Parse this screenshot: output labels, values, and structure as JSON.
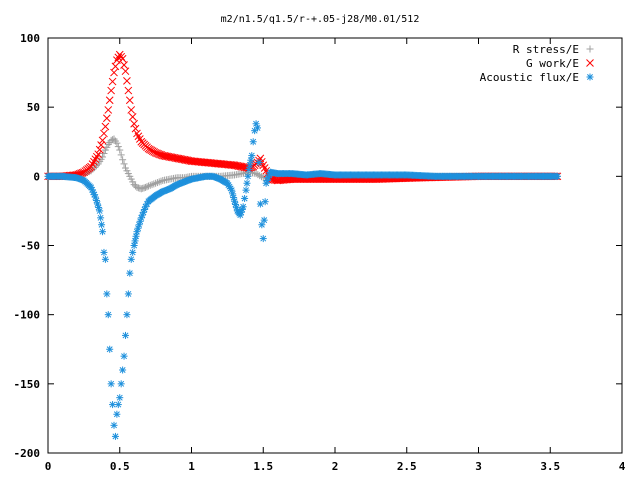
{
  "chart_data": {
    "type": "scatter",
    "title": "m2/n1.5/q1.5/r-+.05-j28/M0.01/512",
    "xlabel": "",
    "ylabel": "",
    "xlim": [
      0,
      4
    ],
    "ylim": [
      -200,
      100
    ],
    "grid": false,
    "legend_position": "top-right",
    "x_ticks": [
      0,
      0.5,
      1,
      1.5,
      2,
      2.5,
      3,
      3.5,
      4
    ],
    "x_tick_labels": [
      "0",
      "0.5",
      "1",
      "1.5",
      "2",
      "2.5",
      "3",
      "3.5",
      "4"
    ],
    "y_ticks": [
      100,
      50,
      0,
      -50,
      -100,
      -150,
      -200
    ],
    "y_tick_labels": [
      "100",
      "50",
      "0",
      "-50",
      "-100",
      "-150",
      "-200"
    ],
    "series": [
      {
        "name": "R stress/E",
        "marker": "+",
        "color": "#a0a0a0",
        "points": [
          [
            0.0,
            0
          ],
          [
            0.1,
            0
          ],
          [
            0.2,
            0.5
          ],
          [
            0.25,
            1.5
          ],
          [
            0.3,
            4
          ],
          [
            0.35,
            9
          ],
          [
            0.38,
            14
          ],
          [
            0.4,
            19
          ],
          [
            0.42,
            23
          ],
          [
            0.44,
            26
          ],
          [
            0.46,
            27
          ],
          [
            0.48,
            24
          ],
          [
            0.5,
            19
          ],
          [
            0.52,
            12
          ],
          [
            0.54,
            6
          ],
          [
            0.56,
            2
          ],
          [
            0.58,
            -2
          ],
          [
            0.6,
            -6
          ],
          [
            0.62,
            -8
          ],
          [
            0.65,
            -9
          ],
          [
            0.68,
            -8
          ],
          [
            0.7,
            -7
          ],
          [
            0.75,
            -5
          ],
          [
            0.8,
            -3
          ],
          [
            0.85,
            -2
          ],
          [
            0.9,
            -1
          ],
          [
            0.95,
            -1
          ],
          [
            1.0,
            0
          ],
          [
            1.1,
            0
          ],
          [
            1.2,
            0
          ],
          [
            1.3,
            1
          ],
          [
            1.35,
            2
          ],
          [
            1.4,
            3
          ],
          [
            1.45,
            2
          ],
          [
            1.5,
            -1
          ],
          [
            1.55,
            0
          ],
          [
            1.7,
            0
          ],
          [
            2.0,
            0
          ],
          [
            2.5,
            0
          ],
          [
            3.0,
            0
          ],
          [
            3.55,
            0
          ]
        ]
      },
      {
        "name": "G work/E",
        "marker": "x",
        "color": "#ff0000",
        "points": [
          [
            0.0,
            0
          ],
          [
            0.1,
            0
          ],
          [
            0.2,
            1
          ],
          [
            0.25,
            3
          ],
          [
            0.3,
            7
          ],
          [
            0.35,
            16
          ],
          [
            0.38,
            26
          ],
          [
            0.4,
            36
          ],
          [
            0.42,
            48
          ],
          [
            0.44,
            62
          ],
          [
            0.46,
            75
          ],
          [
            0.48,
            84
          ],
          [
            0.5,
            88
          ],
          [
            0.52,
            85
          ],
          [
            0.54,
            76
          ],
          [
            0.56,
            62
          ],
          [
            0.58,
            48
          ],
          [
            0.6,
            38
          ],
          [
            0.62,
            31
          ],
          [
            0.65,
            25
          ],
          [
            0.7,
            20
          ],
          [
            0.75,
            17
          ],
          [
            0.8,
            15
          ],
          [
            0.9,
            13
          ],
          [
            1.0,
            11
          ],
          [
            1.1,
            10
          ],
          [
            1.2,
            9
          ],
          [
            1.3,
            8
          ],
          [
            1.35,
            7
          ],
          [
            1.4,
            6
          ],
          [
            1.43,
            7
          ],
          [
            1.46,
            10
          ],
          [
            1.48,
            13
          ],
          [
            1.5,
            8
          ],
          [
            1.55,
            -2
          ],
          [
            1.6,
            -3
          ],
          [
            1.7,
            -2
          ],
          [
            2.0,
            -2
          ],
          [
            2.3,
            -2
          ],
          [
            2.6,
            -1
          ],
          [
            3.0,
            0
          ],
          [
            3.3,
            0
          ],
          [
            3.55,
            0
          ]
        ]
      },
      {
        "name": "Acoustic flux/E",
        "marker": "*",
        "color": "#1e90dc",
        "points": [
          [
            0.0,
            0
          ],
          [
            0.1,
            0
          ],
          [
            0.2,
            -1
          ],
          [
            0.25,
            -3
          ],
          [
            0.3,
            -8
          ],
          [
            0.33,
            -15
          ],
          [
            0.36,
            -25
          ],
          [
            0.38,
            -40
          ],
          [
            0.39,
            -55
          ],
          [
            0.4,
            -60
          ],
          [
            0.41,
            -85
          ],
          [
            0.42,
            -100
          ],
          [
            0.43,
            -125
          ],
          [
            0.44,
            -150
          ],
          [
            0.45,
            -165
          ],
          [
            0.46,
            -180
          ],
          [
            0.47,
            -188
          ],
          [
            0.48,
            -172
          ],
          [
            0.49,
            -165
          ],
          [
            0.5,
            -160
          ],
          [
            0.51,
            -150
          ],
          [
            0.52,
            -140
          ],
          [
            0.53,
            -130
          ],
          [
            0.54,
            -115
          ],
          [
            0.55,
            -100
          ],
          [
            0.56,
            -85
          ],
          [
            0.57,
            -70
          ],
          [
            0.58,
            -60
          ],
          [
            0.59,
            -55
          ],
          [
            0.6,
            -50
          ],
          [
            0.62,
            -40
          ],
          [
            0.65,
            -30
          ],
          [
            0.68,
            -22
          ],
          [
            0.7,
            -18
          ],
          [
            0.75,
            -14
          ],
          [
            0.8,
            -11
          ],
          [
            0.85,
            -9
          ],
          [
            0.9,
            -6
          ],
          [
            0.95,
            -4
          ],
          [
            1.0,
            -2
          ],
          [
            1.05,
            -1
          ],
          [
            1.1,
            0
          ],
          [
            1.15,
            0
          ],
          [
            1.2,
            -2
          ],
          [
            1.25,
            -5
          ],
          [
            1.28,
            -10
          ],
          [
            1.3,
            -18
          ],
          [
            1.32,
            -25
          ],
          [
            1.34,
            -28
          ],
          [
            1.36,
            -22
          ],
          [
            1.38,
            -10
          ],
          [
            1.4,
            5
          ],
          [
            1.42,
            15
          ],
          [
            1.43,
            25
          ],
          [
            1.44,
            33
          ],
          [
            1.45,
            38
          ],
          [
            1.46,
            35
          ],
          [
            1.47,
            10
          ],
          [
            1.48,
            -20
          ],
          [
            1.49,
            -35
          ],
          [
            1.5,
            -45
          ],
          [
            1.52,
            -5
          ],
          [
            1.55,
            3
          ],
          [
            1.6,
            2
          ],
          [
            1.7,
            2
          ],
          [
            1.8,
            1
          ],
          [
            1.9,
            2
          ],
          [
            2.0,
            1
          ],
          [
            2.1,
            1
          ],
          [
            2.3,
            1
          ],
          [
            2.5,
            1
          ],
          [
            2.7,
            0
          ],
          [
            3.0,
            0
          ],
          [
            3.3,
            0
          ],
          [
            3.55,
            0
          ]
        ]
      }
    ]
  }
}
